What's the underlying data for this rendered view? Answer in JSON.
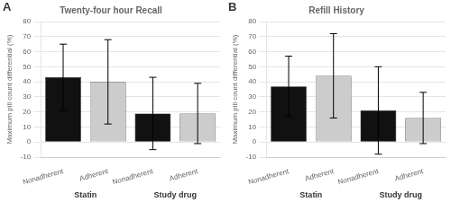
{
  "chart_data": [
    {
      "type": "bar",
      "title": "Twenty-four hour Recall",
      "panel_label": "A",
      "categories": [
        "Nonadherent",
        "Adherent",
        "Nonadherent",
        "Adherent"
      ],
      "group_labels": [
        "Statin",
        "Study drug"
      ],
      "values": [
        43,
        40,
        19,
        19
      ],
      "errors": [
        22,
        28,
        24,
        20
      ],
      "colors": [
        "#111111",
        "#cccccc",
        "#111111",
        "#cccccc"
      ],
      "ylabel": "Maximum pill count differential (%)",
      "ylim": [
        -10,
        80
      ],
      "yticks": [
        -10,
        0,
        10,
        20,
        30,
        40,
        50,
        60,
        70,
        80
      ],
      "grid": true
    },
    {
      "type": "bar",
      "title": "Refill History",
      "panel_label": "B",
      "categories": [
        "Nonadherent",
        "Adherent",
        "Nonadherent",
        "Adherent"
      ],
      "group_labels": [
        "Statin",
        "Study drug"
      ],
      "values": [
        37,
        44,
        21,
        16
      ],
      "errors": [
        20,
        28,
        29,
        17
      ],
      "colors": [
        "#111111",
        "#cccccc",
        "#111111",
        "#cccccc"
      ],
      "ylabel": "Maximum pill count differential (%)",
      "ylim": [
        -10,
        80
      ],
      "yticks": [
        -10,
        0,
        10,
        20,
        30,
        40,
        50,
        60,
        70,
        80
      ],
      "grid": true
    }
  ]
}
